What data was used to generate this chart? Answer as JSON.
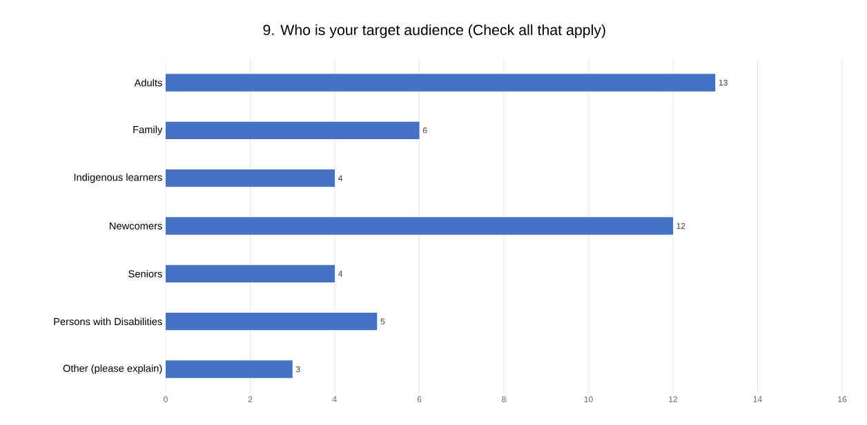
{
  "chart_data": {
    "type": "bar",
    "orientation": "horizontal",
    "title": "9. Who is your target audience (Check all that apply)",
    "categories": [
      "Adults",
      "Family",
      "Indigenous learners",
      "Newcomers",
      "Seniors",
      "Persons with Disabilities",
      "Other (please explain)"
    ],
    "values": [
      13,
      6,
      4,
      12,
      4,
      5,
      3
    ],
    "color": "#4472c4",
    "xlim": [
      0,
      16
    ],
    "xticks": [
      0,
      2,
      4,
      6,
      8,
      10,
      12,
      14,
      16
    ],
    "grid": "x",
    "data_labels": true
  }
}
